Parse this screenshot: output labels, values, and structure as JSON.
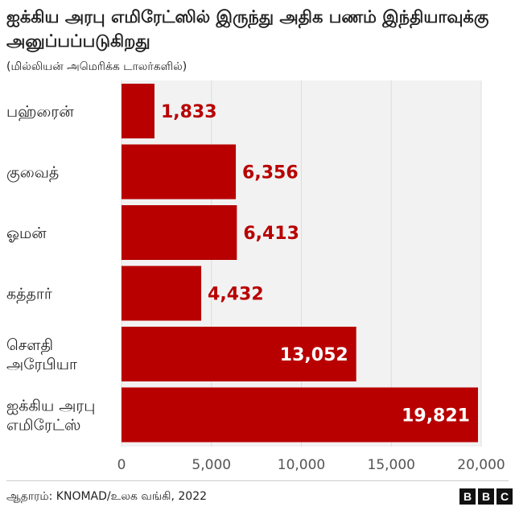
{
  "header": {
    "title": "ஐக்கிய அரபு எமிரேட்ஸில் இருந்து அதிக பணம் இந்தியாவுக்கு அனுப்பப்படுகிறது",
    "subtitle": "(மில்லியன் அமெரிக்க டாலர்களில்)"
  },
  "footer": {
    "source": "ஆதாரம்: KNOMAD/உலக வங்கி, 2022",
    "logo_letters": [
      "B",
      "B",
      "C"
    ]
  },
  "colors": {
    "bar": "#b80000",
    "label_outside": "#b80000",
    "label_inside": "#ffffff",
    "grid": "#dddddd",
    "plot_bg": "#f2f2f2"
  },
  "chart_data": {
    "type": "bar",
    "orientation": "horizontal",
    "categories": [
      [
        "பஹ்ரைன்"
      ],
      [
        "குவைத்"
      ],
      [
        "ஓமன்"
      ],
      [
        "கத்தார்"
      ],
      [
        "சௌதி",
        "அரேபியா"
      ],
      [
        "ஐக்கிய அரபு",
        "எமிரேட்ஸ்"
      ]
    ],
    "values": [
      1833,
      6356,
      6413,
      4432,
      13052,
      19821
    ],
    "value_labels": [
      "1,833",
      "6,356",
      "6,413",
      "4,432",
      "13,052",
      "19,821"
    ],
    "xlim": [
      0,
      20000
    ],
    "xticks": [
      0,
      5000,
      10000,
      15000,
      20000
    ],
    "xtick_labels": [
      "0",
      "5,000",
      "10,000",
      "15,000",
      "20,000"
    ],
    "grid": true
  }
}
